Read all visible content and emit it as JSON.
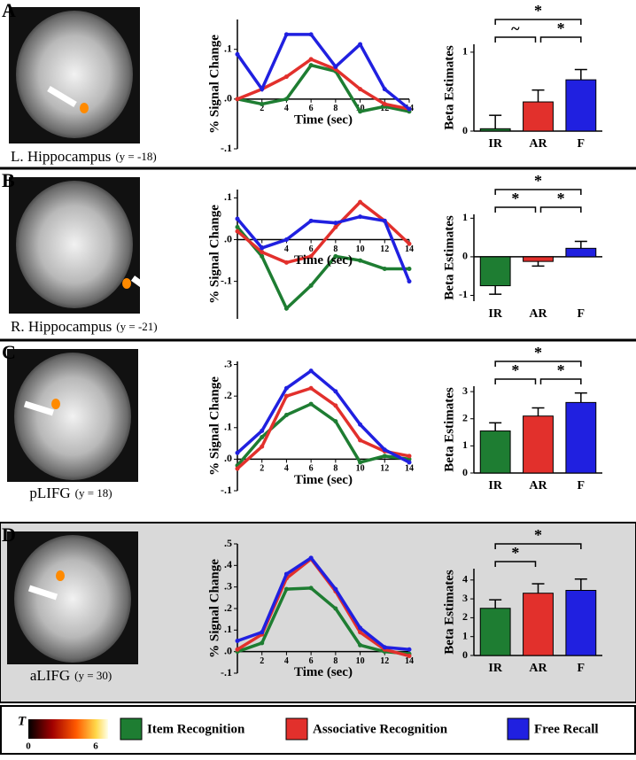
{
  "panels": [
    {
      "letter": "A",
      "region": "L. Hippocampus",
      "coordinate": "(y = -18)"
    },
    {
      "letter": "B",
      "region": "R. Hippocampus",
      "coordinate": "(y = -21)"
    },
    {
      "letter": "C",
      "region": "pLIFG",
      "coordinate": "(y = 18)"
    },
    {
      "letter": "D",
      "region": "aLIFG",
      "coordinate": "(y = 30)"
    }
  ],
  "colorbar": {
    "title": "T",
    "ticks": [
      0,
      6
    ]
  },
  "chart_data": [
    {
      "type": "line",
      "y_label": "% Signal Change",
      "x_label": "Time (sec)",
      "x": [
        0,
        2,
        4,
        6,
        8,
        10,
        12,
        14
      ],
      "xlim": [
        0,
        14
      ],
      "xticks": [
        2,
        4,
        6,
        8,
        10,
        12,
        14
      ],
      "ylim": [
        -0.1,
        0.16
      ],
      "yticks": [
        {
          "value": 0.1,
          "label": ".1"
        },
        {
          "value": 0,
          "label": ".0"
        },
        {
          "value": -0.1,
          "label": "-.1"
        }
      ],
      "series": [
        {
          "name": "Item Recognition",
          "color": "#1e7d32",
          "values": [
            0,
            -0.01,
            0,
            0.068,
            0.056,
            -0.025,
            -0.015,
            -0.025
          ]
        },
        {
          "name": "Associative Recognition",
          "color": "#e2302c",
          "values": [
            0,
            0.02,
            0.045,
            0.08,
            0.06,
            0.02,
            -0.01,
            -0.02
          ]
        },
        {
          "name": "Free Recall",
          "color": "#2020e0",
          "values": [
            0.09,
            0.02,
            0.13,
            0.13,
            0.065,
            0.11,
            0.02,
            -0.02
          ]
        }
      ]
    },
    {
      "type": "bar",
      "y_label": "Beta Estimates",
      "categories": [
        "IR",
        "AR",
        "F"
      ],
      "values": [
        0.03,
        0.37,
        0.65
      ],
      "errors": [
        0.17,
        0.15,
        0.13
      ],
      "colors": [
        "#1e7d32",
        "#e2302c",
        "#2020e0"
      ],
      "ylim": [
        0,
        1.1
      ],
      "yticks": [
        0,
        1
      ],
      "annotations": [
        {
          "text": "*",
          "pair": [
            "IR",
            "F"
          ]
        },
        {
          "text": "~",
          "pair": [
            "IR",
            "AR"
          ]
        },
        {
          "text": "*",
          "pair": [
            "AR",
            "F"
          ]
        }
      ]
    },
    {
      "type": "line",
      "y_label": "% Signal Change",
      "x_label": "Time (sec)",
      "x": [
        0,
        2,
        4,
        6,
        8,
        10,
        12,
        14
      ],
      "xlim": [
        0,
        14
      ],
      "xticks": [
        2,
        4,
        6,
        8,
        10,
        12,
        14
      ],
      "ylim": [
        -0.19,
        0.12
      ],
      "yticks": [
        {
          "value": 0.1,
          "label": ".1"
        },
        {
          "value": 0,
          "label": ".0"
        },
        {
          "value": -0.1,
          "label": "-.1"
        }
      ],
      "series": [
        {
          "name": "Item Recognition",
          "color": "#1e7d32",
          "values": [
            0.03,
            -0.04,
            -0.165,
            -0.11,
            -0.04,
            -0.05,
            -0.07,
            -0.07
          ]
        },
        {
          "name": "Associative Recognition",
          "color": "#e2302c",
          "values": [
            0.02,
            -0.03,
            -0.055,
            -0.04,
            0.03,
            0.09,
            0.045,
            -0.01
          ]
        },
        {
          "name": "Free Recall",
          "color": "#2020e0",
          "values": [
            0.05,
            -0.02,
            0,
            0.045,
            0.04,
            0.055,
            0.045,
            -0.1
          ]
        }
      ]
    },
    {
      "type": "bar",
      "y_label": "Beta Estimates",
      "categories": [
        "IR",
        "AR",
        "F"
      ],
      "values": [
        -0.75,
        -0.12,
        0.22
      ],
      "errors": [
        0.22,
        0.12,
        0.18
      ],
      "colors": [
        "#1e7d32",
        "#e2302c",
        "#2020e0"
      ],
      "ylim": [
        -1.15,
        1.1
      ],
      "yticks": [
        -1,
        0,
        1
      ],
      "annotations": [
        {
          "text": "*",
          "pair": [
            "IR",
            "F"
          ]
        },
        {
          "text": "*",
          "pair": [
            "IR",
            "AR"
          ]
        },
        {
          "text": "*",
          "pair": [
            "AR",
            "F"
          ]
        }
      ]
    },
    {
      "type": "line",
      "y_label": "% Signal Change",
      "x_label": "Time (sec)",
      "x": [
        0,
        2,
        4,
        6,
        8,
        10,
        12,
        14
      ],
      "xlim": [
        0,
        14
      ],
      "xticks": [
        2,
        4,
        6,
        8,
        10,
        12,
        14
      ],
      "ylim": [
        -0.1,
        0.31
      ],
      "yticks": [
        {
          "value": 0.3,
          "label": ".3"
        },
        {
          "value": 0.2,
          "label": ".2"
        },
        {
          "value": 0.1,
          "label": ".1"
        },
        {
          "value": 0,
          "label": ".0"
        },
        {
          "value": -0.1,
          "label": "-.1"
        }
      ],
      "series": [
        {
          "name": "Item Recognition",
          "color": "#1e7d32",
          "values": [
            -0.02,
            0.07,
            0.14,
            0.175,
            0.12,
            -0.01,
            0.01,
            0
          ]
        },
        {
          "name": "Associative Recognition",
          "color": "#e2302c",
          "values": [
            -0.03,
            0.04,
            0.2,
            0.225,
            0.17,
            0.06,
            0.025,
            0.01
          ]
        },
        {
          "name": "Free Recall",
          "color": "#2020e0",
          "values": [
            0.02,
            0.09,
            0.225,
            0.28,
            0.215,
            0.11,
            0.03,
            -0.01
          ]
        }
      ]
    },
    {
      "type": "bar",
      "y_label": "Beta Estimates",
      "categories": [
        "IR",
        "AR",
        "F"
      ],
      "values": [
        1.55,
        2.1,
        2.6
      ],
      "errors": [
        0.3,
        0.3,
        0.35
      ],
      "colors": [
        "#1e7d32",
        "#e2302c",
        "#2020e0"
      ],
      "ylim": [
        0,
        3.2
      ],
      "yticks": [
        0,
        1,
        2,
        3
      ],
      "annotations": [
        {
          "text": "*",
          "pair": [
            "IR",
            "F"
          ]
        },
        {
          "text": "*",
          "pair": [
            "IR",
            "AR"
          ]
        },
        {
          "text": "*",
          "pair": [
            "AR",
            "F"
          ]
        }
      ]
    },
    {
      "type": "line",
      "y_label": "% Signal Change",
      "x_label": "Time (sec)",
      "x": [
        0,
        2,
        4,
        6,
        8,
        10,
        12,
        14
      ],
      "xlim": [
        0,
        14
      ],
      "xticks": [
        2,
        4,
        6,
        8,
        10,
        12,
        14
      ],
      "ylim": [
        -0.1,
        0.5
      ],
      "yticks": [
        {
          "value": 0.5,
          "label": ".5"
        },
        {
          "value": 0.4,
          "label": ".4"
        },
        {
          "value": 0.3,
          "label": ".3"
        },
        {
          "value": 0.2,
          "label": ".2"
        },
        {
          "value": 0.1,
          "label": ".1"
        },
        {
          "value": 0,
          "label": ".0"
        },
        {
          "value": -0.1,
          "label": "-.1"
        }
      ],
      "series": [
        {
          "name": "Item Recognition",
          "color": "#1e7d32",
          "values": [
            0,
            0.04,
            0.29,
            0.295,
            0.2,
            0.03,
            0,
            -0.01
          ]
        },
        {
          "name": "Associative Recognition",
          "color": "#e2302c",
          "values": [
            0.01,
            0.08,
            0.34,
            0.43,
            0.28,
            0.09,
            0.01,
            -0.02
          ]
        },
        {
          "name": "Free Recall",
          "color": "#2020e0",
          "values": [
            0.05,
            0.09,
            0.36,
            0.435,
            0.29,
            0.11,
            0.02,
            0.01
          ]
        }
      ]
    },
    {
      "type": "bar",
      "y_label": "Beta Estimates",
      "categories": [
        "IR",
        "AR",
        "F"
      ],
      "values": [
        2.5,
        3.3,
        3.45
      ],
      "errors": [
        0.45,
        0.5,
        0.6
      ],
      "colors": [
        "#1e7d32",
        "#e2302c",
        "#2020e0"
      ],
      "ylim": [
        0,
        4.6
      ],
      "yticks": [
        0,
        1,
        2,
        3,
        4
      ],
      "annotations": [
        {
          "text": "*",
          "pair": [
            "IR",
            "F"
          ]
        },
        {
          "text": "*",
          "pair": [
            "IR",
            "AR"
          ]
        }
      ]
    }
  ]
}
